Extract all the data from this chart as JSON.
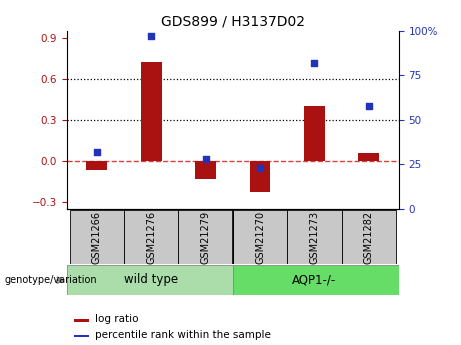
{
  "title": "GDS899 / H3137D02",
  "categories": [
    "GSM21266",
    "GSM21276",
    "GSM21279",
    "GSM21270",
    "GSM21273",
    "GSM21282"
  ],
  "log_ratios": [
    -0.07,
    0.72,
    -0.13,
    -0.23,
    0.4,
    0.06
  ],
  "percentile_ranks": [
    32,
    97,
    28,
    23,
    82,
    58
  ],
  "bar_color": "#AA1111",
  "dot_color": "#2233BB",
  "ylim_left": [
    -0.35,
    0.95
  ],
  "ylim_right": [
    0,
    100
  ],
  "yticks_left": [
    -0.3,
    0.0,
    0.3,
    0.6,
    0.9
  ],
  "yticks_right": [
    0,
    25,
    50,
    75,
    100
  ],
  "hlines": [
    0.3,
    0.6
  ],
  "dashed_zero_color": "#CC2222",
  "background_color": "#FFFFFF",
  "legend_red_label": "log ratio",
  "legend_blue_label": "percentile rank within the sample",
  "genotype_label": "genotype/variation",
  "wt_color": "#AADDAA",
  "aqp_color": "#66DD66",
  "label_bg": "#C8C8C8",
  "group_divider": 2.5
}
